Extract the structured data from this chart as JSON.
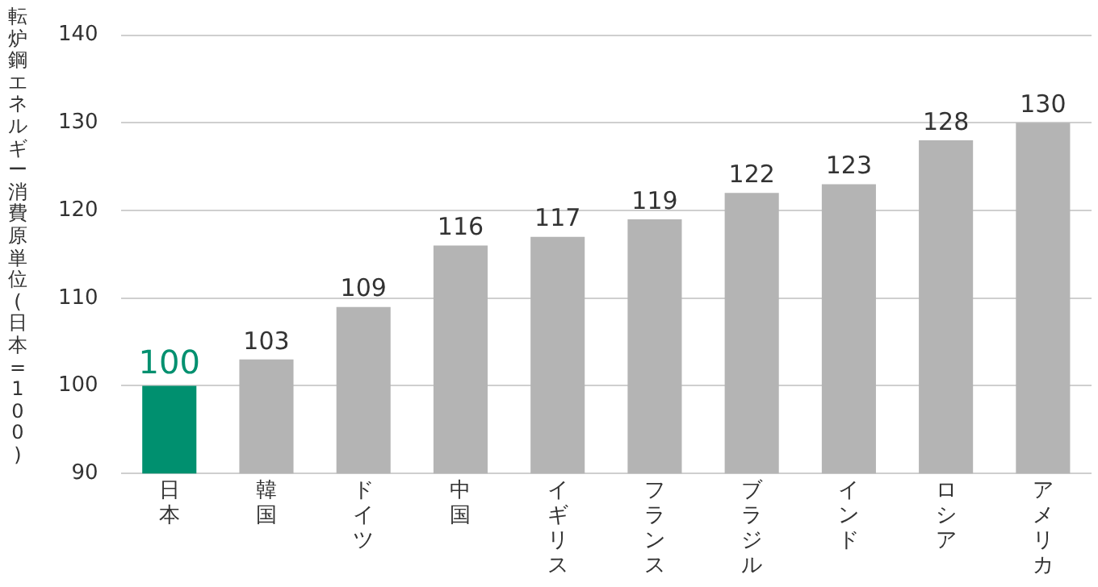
{
  "chart_data": {
    "type": "bar",
    "ylabel": "転炉鋼エネルギー消費原単位(日本=100)",
    "categories": [
      "日本",
      "韓国",
      "ドイツ",
      "中国",
      "イギリス",
      "フランス",
      "ブラジル",
      "インド",
      "ロシア",
      "アメリカ"
    ],
    "values": [
      100,
      103,
      109,
      116,
      117,
      119,
      122,
      123,
      128,
      130
    ],
    "colors": [
      "#00906f",
      "#b4b4b4",
      "#b4b4b4",
      "#b4b4b4",
      "#b4b4b4",
      "#b4b4b4",
      "#b4b4b4",
      "#b4b4b4",
      "#b4b4b4",
      "#b4b4b4"
    ],
    "ylim": [
      90,
      140
    ],
    "yticks": [
      90,
      100,
      110,
      120,
      130,
      140
    ],
    "grid": "y",
    "data_labels": true,
    "legend": false
  }
}
